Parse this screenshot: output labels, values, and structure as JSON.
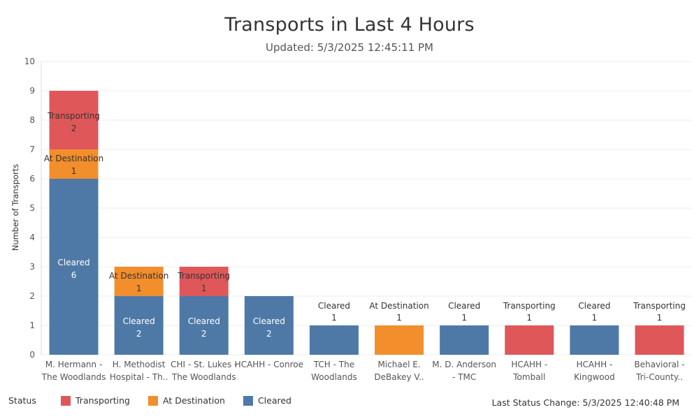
{
  "header": {
    "title": "Transports in Last 4 Hours",
    "subtitle": "Updated: 5/3/2025 12:45:11 PM"
  },
  "legend": {
    "title": "Status",
    "items": [
      {
        "label": "Transporting",
        "color": "#e05759"
      },
      {
        "label": "At Destination",
        "color": "#f28e2c"
      },
      {
        "label": "Cleared",
        "color": "#4e79a7"
      }
    ]
  },
  "footer": {
    "last_status_change": "Last Status Change: 5/3/2025 12:40:48 PM"
  },
  "chart_data": {
    "type": "bar",
    "stacked": true,
    "ylabel": "Number of Transports",
    "ylim": [
      0,
      10
    ],
    "yticks": [
      0,
      1,
      2,
      3,
      4,
      5,
      6,
      7,
      8,
      9,
      10
    ],
    "grid": true,
    "categories": [
      [
        "M. Hermann -",
        "The Woodlands"
      ],
      [
        "H. Methodist",
        "Hospital - Th.."
      ],
      [
        "CHI - St. Lukes -",
        "The Woodlands"
      ],
      [
        "HCAHH - Conroe"
      ],
      [
        "TCH - The",
        "Woodlands"
      ],
      [
        "Michael E.",
        "DeBakey V.."
      ],
      [
        "M. D. Anderson",
        "- TMC"
      ],
      [
        "HCAHH -",
        "Tomball"
      ],
      [
        "HCAHH -",
        "Kingwood"
      ],
      [
        "Behavioral -",
        "Tri-County.."
      ]
    ],
    "series": [
      {
        "name": "Cleared",
        "color": "#4e79a7",
        "values": [
          6,
          2,
          2,
          2,
          1,
          0,
          1,
          0,
          1,
          0
        ]
      },
      {
        "name": "At Destination",
        "color": "#f28e2c",
        "values": [
          1,
          1,
          0,
          0,
          0,
          1,
          0,
          0,
          0,
          0
        ]
      },
      {
        "name": "Transporting",
        "color": "#e05759",
        "values": [
          2,
          0,
          1,
          0,
          0,
          0,
          0,
          1,
          0,
          1
        ]
      }
    ]
  }
}
